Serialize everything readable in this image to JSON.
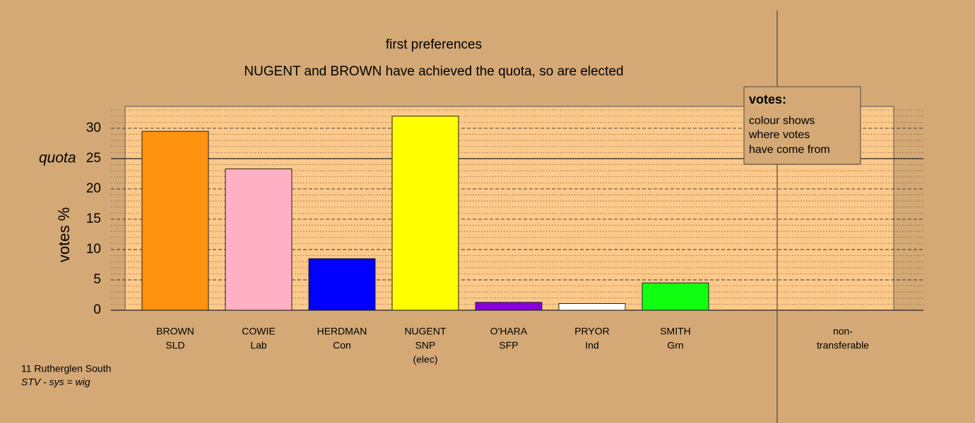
{
  "chart_data": {
    "type": "bar",
    "title": "first preferences",
    "subtitle": "NUGENT and BROWN have achieved the quota, so are elected",
    "y_label": "votes %",
    "categories": [
      [
        "BROWN",
        "SLD"
      ],
      [
        "COWIE",
        "Lab"
      ],
      [
        "HERDMAN",
        "Con"
      ],
      [
        "NUGENT",
        "SNP",
        "(elec)"
      ],
      [
        "O'HARA",
        "SFP"
      ],
      [
        "PRYOR",
        "Ind"
      ],
      [
        "SMITH",
        "Grn"
      ],
      [
        "non-",
        "transferable"
      ]
    ],
    "values": [
      29.5,
      23.3,
      8.5,
      32,
      1.3,
      1.1,
      4.5,
      0
    ],
    "colors": [
      "#ff9310",
      "#ffb0c4",
      "#0000ff",
      "#ffff00",
      "#8800dd",
      "#ffffff",
      "#11ff11",
      "#ffffff"
    ],
    "ylim": [
      0,
      33.6
    ],
    "yticks": [
      0,
      5,
      10,
      15,
      20,
      25,
      30
    ],
    "minor_yticks": [
      1,
      2,
      3,
      4,
      6,
      7,
      8,
      9,
      11,
      12,
      13,
      14,
      16,
      17,
      18,
      19,
      21,
      22,
      23,
      24,
      26,
      27,
      28,
      29,
      31,
      32,
      33
    ],
    "grid": true,
    "quota": 25,
    "quota_label": "quota",
    "legend": {
      "title": "votes:",
      "lines": [
        "colour shows",
        "where votes",
        "have come from"
      ]
    },
    "footnote": [
      "11 Rutherglen South",
      "STV - sys = wig"
    ]
  }
}
